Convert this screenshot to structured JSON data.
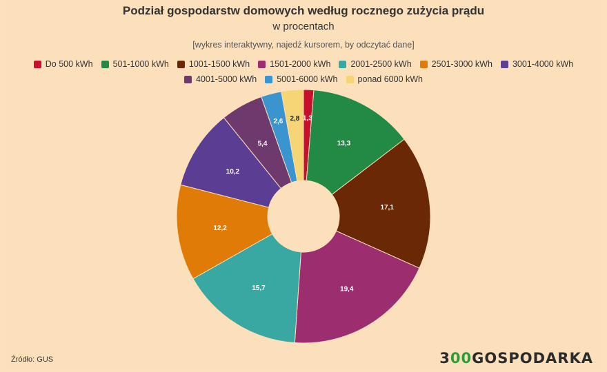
{
  "chart_data": {
    "type": "pie",
    "title": "Podział gospodarstw domowych według rocznego zużycia prądu",
    "subtitle": "w procentach",
    "note": "[wykres interaktywny, najedź kursorem, by odczytać dane]",
    "legend_position": "top",
    "donut": true,
    "categories": [
      "Do 500 kWh",
      "501-1000 kWh",
      "1001-1500 kWh",
      "1501-2000 kWh",
      "2001-2500 kWh",
      "2501-3000 kWh",
      "3001-4000 kWh",
      "4001-5000 kWh",
      "5001-6000 kWh",
      "ponad 6000 kWh"
    ],
    "values": [
      1.3,
      13.3,
      17.1,
      19.4,
      15.7,
      12.2,
      10.2,
      5.4,
      2.6,
      2.8
    ],
    "labels": [
      "1,3",
      "13,3",
      "17,1",
      "19,4",
      "15,7",
      "12,2",
      "10,2",
      "5,4",
      "2,6",
      "2,8"
    ],
    "colors": [
      "#c8102e",
      "#238a45",
      "#6b2807",
      "#9c2e6f",
      "#39a8a2",
      "#e07b07",
      "#5b3d94",
      "#6e3a6e",
      "#3a94cf",
      "#f5d576"
    ]
  },
  "footer": {
    "source": "Źródło: GUS",
    "logo_digits": "3",
    "logo_zeros": "00",
    "logo_text": "GOSPODARKA"
  }
}
